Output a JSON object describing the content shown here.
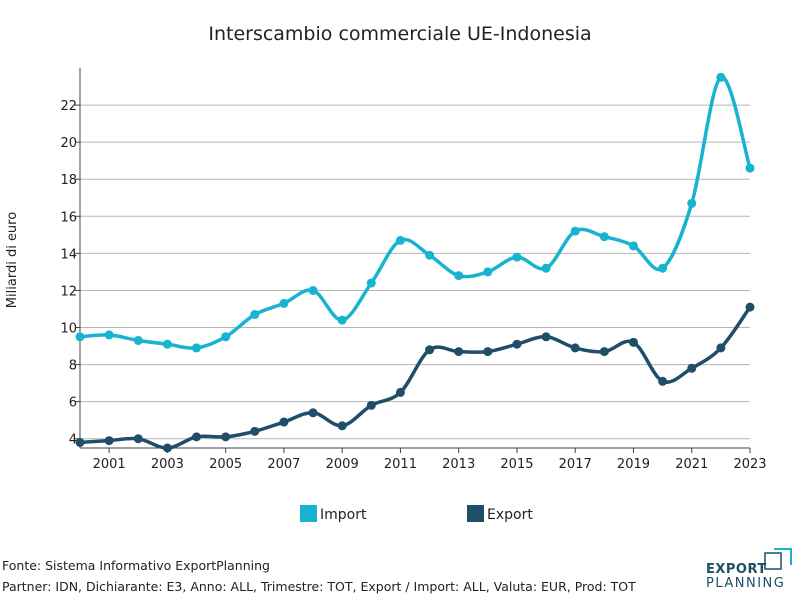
{
  "chart_data": {
    "type": "line",
    "title": "Interscambio commerciale UE-Indonesia",
    "xlabel": "",
    "ylabel": "Miliardi di euro",
    "x": [
      2000,
      2001,
      2002,
      2003,
      2004,
      2005,
      2006,
      2007,
      2008,
      2009,
      2010,
      2011,
      2012,
      2013,
      2014,
      2015,
      2016,
      2017,
      2018,
      2019,
      2020,
      2021,
      2022,
      2023
    ],
    "xticks": [
      2001,
      2003,
      2005,
      2007,
      2009,
      2011,
      2013,
      2015,
      2017,
      2019,
      2021,
      2023
    ],
    "yticks": [
      4,
      6,
      8,
      10,
      12,
      14,
      16,
      18,
      20,
      22
    ],
    "xlim": [
      2000,
      2023
    ],
    "ylim": [
      3.5,
      24.0
    ],
    "grid": true,
    "legend": "bottom-center",
    "series": [
      {
        "name": "Import",
        "color": "#17b3d0",
        "values": [
          9.5,
          9.6,
          9.3,
          9.1,
          8.9,
          9.5,
          10.7,
          11.3,
          12.0,
          10.4,
          12.4,
          14.7,
          13.9,
          12.8,
          13.0,
          13.8,
          13.2,
          15.2,
          14.9,
          14.4,
          13.2,
          16.7,
          23.5,
          18.6
        ]
      },
      {
        "name": "Export",
        "color": "#1f4e68",
        "values": [
          3.8,
          3.9,
          4.0,
          3.5,
          4.1,
          4.1,
          4.4,
          4.9,
          5.4,
          4.7,
          5.8,
          6.5,
          8.8,
          8.7,
          8.7,
          9.1,
          9.5,
          8.9,
          8.7,
          9.2,
          7.1,
          7.8,
          8.9,
          11.1
        ]
      }
    ]
  },
  "footer": {
    "source": "Fonte: Sistema Informativo ExportPlanning",
    "params": "Partner: IDN, Dichiarante: E3, Anno: ALL, Trimestre: TOT, Export / Import: ALL, Valuta: EUR, Prod: TOT"
  },
  "logo": {
    "line1": "EXPORT",
    "line2": "PLANNING"
  }
}
